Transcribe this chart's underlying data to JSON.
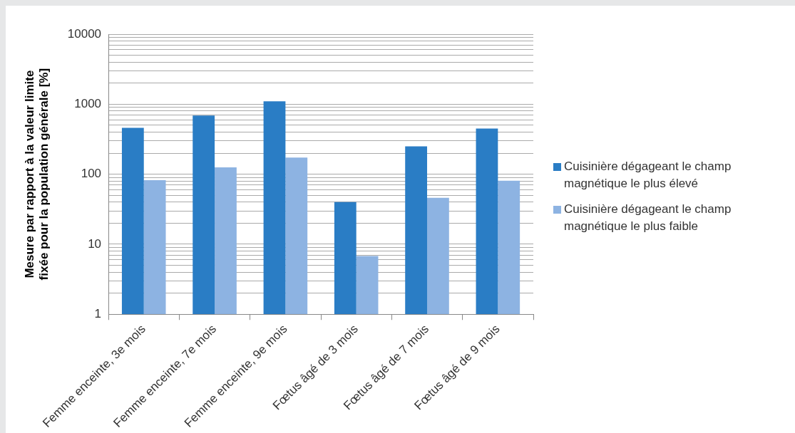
{
  "chart_data": {
    "type": "bar",
    "ylabel": "Mesure par rapport à la valeur limite\nfixée pour la population générale [%]",
    "categories": [
      "Femme enceinte, 3e mois",
      "Femme enceinte, 7e mois",
      "Femme enceinte, 9e mois",
      "Fœtus âgé de 3 mois",
      "Fœtus âgé de 7 mois",
      "Fœtus âgé de 9 mois"
    ],
    "series": [
      {
        "name": "Cuisinière dégageant le champ magnétique le plus élevé",
        "color": "#2a7dc5",
        "values": [
          460,
          690,
          1100,
          40,
          250,
          450
        ]
      },
      {
        "name": "Cuisinière dégageant le champ magnétique le plus faible",
        "color": "#8db3e2",
        "values": [
          82,
          125,
          173,
          6.8,
          46,
          81
        ]
      }
    ],
    "log": "y",
    "ylim": [
      1,
      10000
    ],
    "yticks": [
      1,
      {
        "value": 2,
        "label": null
      },
      {
        "value": 3,
        "label": null
      },
      {
        "value": 4,
        "label": null
      },
      {
        "value": 5,
        "label": null
      },
      {
        "value": 6,
        "label": null
      },
      {
        "value": 7,
        "label": null
      },
      {
        "value": 8,
        "label": null
      },
      {
        "value": 9,
        "label": null
      },
      10,
      {
        "value": 20,
        "label": null
      },
      {
        "value": 30,
        "label": null
      },
      {
        "value": 40,
        "label": null
      },
      {
        "value": 50,
        "label": null
      },
      {
        "value": 60,
        "label": null
      },
      {
        "value": 70,
        "label": null
      },
      {
        "value": 80,
        "label": null
      },
      {
        "value": 90,
        "label": null
      },
      100,
      {
        "value": 200,
        "label": null
      },
      {
        "value": 300,
        "label": null
      },
      {
        "value": 400,
        "label": null
      },
      {
        "value": 500,
        "label": null
      },
      {
        "value": 600,
        "label": null
      },
      {
        "value": 700,
        "label": null
      },
      {
        "value": 800,
        "label": null
      },
      {
        "value": 900,
        "label": null
      },
      1000,
      {
        "value": 2000,
        "label": null
      },
      {
        "value": 3000,
        "label": null
      },
      {
        "value": 4000,
        "label": null
      },
      {
        "value": 5000,
        "label": null
      },
      {
        "value": 6000,
        "label": null
      },
      {
        "value": 7000,
        "label": null
      },
      {
        "value": 8000,
        "label": null
      },
      {
        "value": 9000,
        "label": null
      },
      10000
    ],
    "grid": "y",
    "legend": "right"
  }
}
